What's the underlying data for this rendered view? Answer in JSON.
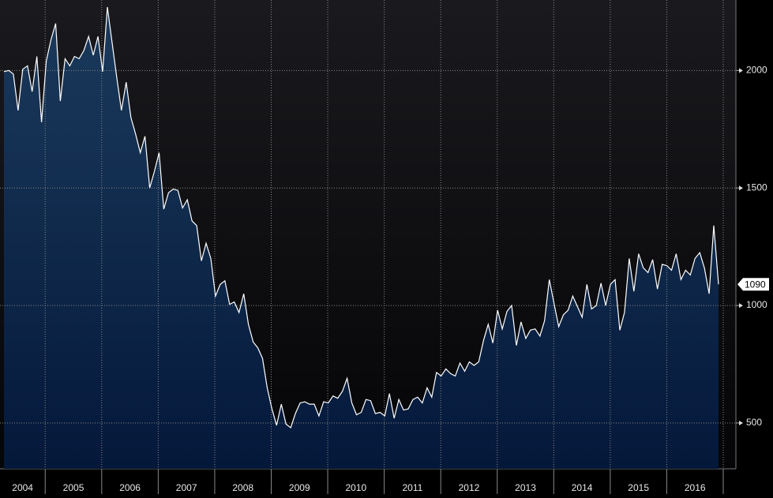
{
  "chart_data": {
    "type": "area",
    "values": [
      1995,
      2000,
      1985,
      1830,
      2005,
      2020,
      1910,
      2060,
      1780,
      2040,
      2130,
      2200,
      1870,
      2050,
      2020,
      2060,
      2050,
      2085,
      2145,
      2065,
      2145,
      1995,
      2270,
      2120,
      1970,
      1830,
      1950,
      1800,
      1730,
      1650,
      1720,
      1500,
      1570,
      1650,
      1410,
      1480,
      1495,
      1490,
      1415,
      1450,
      1360,
      1340,
      1190,
      1265,
      1200,
      1040,
      1090,
      1105,
      1005,
      1015,
      970,
      1050,
      920,
      845,
      820,
      775,
      650,
      560,
      490,
      580,
      495,
      480,
      540,
      585,
      590,
      580,
      580,
      530,
      590,
      585,
      615,
      605,
      635,
      690,
      585,
      535,
      545,
      600,
      595,
      540,
      545,
      530,
      625,
      520,
      600,
      555,
      560,
      600,
      610,
      585,
      650,
      610,
      715,
      700,
      730,
      710,
      700,
      755,
      720,
      760,
      745,
      760,
      850,
      920,
      840,
      980,
      900,
      975,
      1000,
      830,
      930,
      860,
      895,
      900,
      870,
      935,
      1110,
      1010,
      910,
      960,
      980,
      1040,
      995,
      950,
      1090,
      985,
      1000,
      1095,
      1000,
      1090,
      1110,
      895,
      970,
      1200,
      1060,
      1220,
      1160,
      1140,
      1195,
      1070,
      1175,
      1170,
      1150,
      1220,
      1110,
      1150,
      1130,
      1200,
      1225,
      1160,
      1050,
      1340,
      1090
    ],
    "color": "#ffffff",
    "ylim": [
      305,
      2300
    ],
    "yticks": [
      500,
      1000,
      1500,
      2000
    ],
    "xlim": [
      2004.2,
      2017
    ],
    "xticks": [
      2004,
      2005,
      2006,
      2007,
      2008,
      2009,
      2010,
      2011,
      2012,
      2013,
      2014,
      2015,
      2016
    ],
    "grid": true
  }
}
